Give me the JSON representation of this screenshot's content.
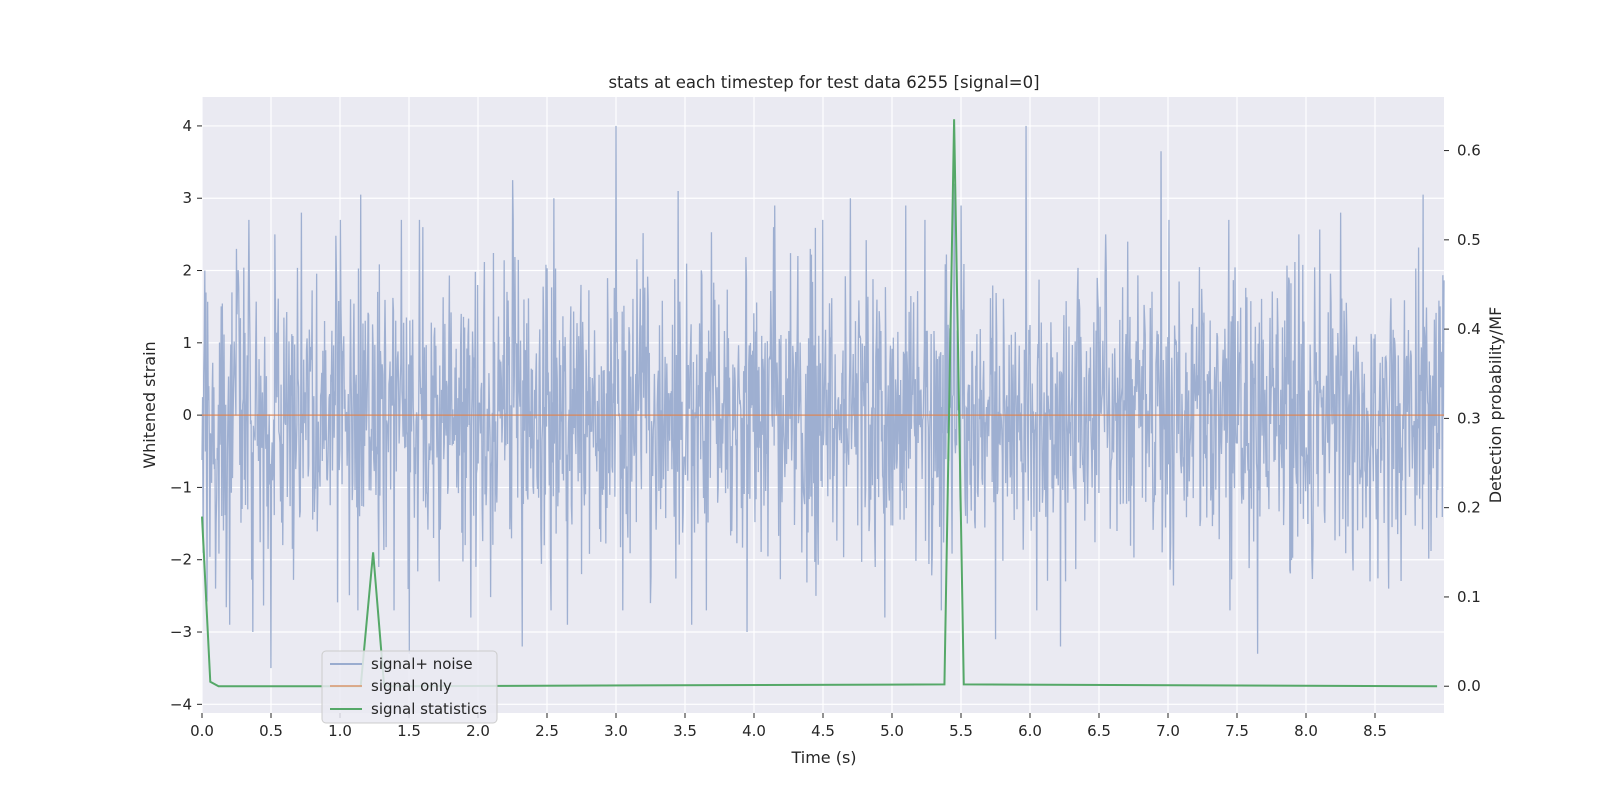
{
  "chart_data": {
    "type": "line",
    "title": "stats at each timestep for test data 6255 [signal=0]",
    "xlabel": "Time (s)",
    "ylabel": "Whitened strain",
    "y2label": "Detection probability/MF",
    "xlim": [
      0,
      9
    ],
    "ylim": [
      -4.12,
      4.4
    ],
    "y2lim": [
      -0.03,
      0.66
    ],
    "x_ticks": [
      0.0,
      0.5,
      1.0,
      1.5,
      2.0,
      2.5,
      3.0,
      3.5,
      4.0,
      4.5,
      5.0,
      5.5,
      6.0,
      6.5,
      7.0,
      7.5,
      8.0,
      8.5
    ],
    "x_tick_labels": [
      "0.0",
      "0.5",
      "1.0",
      "1.5",
      "2.0",
      "2.5",
      "3.0",
      "3.5",
      "4.0",
      "4.5",
      "5.0",
      "5.5",
      "6.0",
      "6.5",
      "7.0",
      "7.5",
      "8.0",
      "8.5"
    ],
    "y_ticks": [
      4,
      3,
      2,
      1,
      0,
      -1,
      -2,
      -3,
      -4
    ],
    "y_tick_labels": [
      "4",
      "3",
      "2",
      "1",
      "0",
      "−1",
      "−2",
      "−3",
      "−4"
    ],
    "y2_ticks": [
      0.6,
      0.5,
      0.4,
      0.3,
      0.2,
      0.1,
      0.0
    ],
    "y2_tick_labels": [
      "0.6",
      "0.5",
      "0.4",
      "0.3",
      "0.2",
      "0.1",
      "0.0"
    ],
    "grid": true,
    "legend_position": "lower-left",
    "series": [
      {
        "name": "signal+ noise",
        "axis": "left",
        "color": "#9aaccf",
        "kind": "noise",
        "samples": 2200,
        "sigma": 1.0,
        "seed": 6255,
        "peaks": [
          {
            "x": 0.02,
            "y": 2.0
          },
          {
            "x": 0.1,
            "y": -2.4
          },
          {
            "x": 0.2,
            "y": -2.9
          },
          {
            "x": 0.25,
            "y": 2.3
          },
          {
            "x": 0.34,
            "y": 2.7
          },
          {
            "x": 0.37,
            "y": -3.0
          },
          {
            "x": 0.5,
            "y": -3.5
          },
          {
            "x": 0.53,
            "y": 2.5
          },
          {
            "x": 0.72,
            "y": 2.8
          },
          {
            "x": 1.15,
            "y": 3.05
          },
          {
            "x": 1.28,
            "y": -2.1
          },
          {
            "x": 1.5,
            "y": -3.3
          },
          {
            "x": 1.6,
            "y": 2.6
          },
          {
            "x": 1.72,
            "y": -2.3
          },
          {
            "x": 1.95,
            "y": -2.8
          },
          {
            "x": 2.25,
            "y": 3.25
          },
          {
            "x": 2.32,
            "y": -3.2
          },
          {
            "x": 2.55,
            "y": 3.0
          },
          {
            "x": 2.65,
            "y": -2.9
          },
          {
            "x": 3.0,
            "y": 4.0
          },
          {
            "x": 3.05,
            "y": -2.7
          },
          {
            "x": 3.25,
            "y": -2.6
          },
          {
            "x": 3.45,
            "y": 3.1
          },
          {
            "x": 3.55,
            "y": -2.9
          },
          {
            "x": 3.95,
            "y": -3.0
          },
          {
            "x": 4.15,
            "y": 2.9
          },
          {
            "x": 4.45,
            "y": -2.5
          },
          {
            "x": 4.7,
            "y": 3.0
          },
          {
            "x": 4.95,
            "y": -2.8
          },
          {
            "x": 5.1,
            "y": 2.9
          },
          {
            "x": 5.45,
            "y": 3.2
          },
          {
            "x": 5.5,
            "y": 2.9
          },
          {
            "x": 5.75,
            "y": -3.1
          },
          {
            "x": 5.97,
            "y": 4.0
          },
          {
            "x": 6.05,
            "y": -2.7
          },
          {
            "x": 6.22,
            "y": -3.2
          },
          {
            "x": 6.55,
            "y": 2.5
          },
          {
            "x": 6.95,
            "y": 3.65
          },
          {
            "x": 7.45,
            "y": -2.7
          },
          {
            "x": 7.65,
            "y": -3.3
          },
          {
            "x": 7.95,
            "y": 2.5
          },
          {
            "x": 8.25,
            "y": 2.8
          },
          {
            "x": 8.6,
            "y": -2.4
          },
          {
            "x": 8.85,
            "y": 3.05
          }
        ]
      },
      {
        "name": "signal only",
        "axis": "left",
        "color": "#dd8452",
        "x": [
          0,
          9
        ],
        "y": [
          0,
          0
        ]
      },
      {
        "name": "signal statistics",
        "axis": "right",
        "color": "#55a868",
        "x": [
          0.0,
          0.06,
          0.12,
          1.15,
          1.24,
          1.32,
          5.38,
          5.45,
          5.52,
          8.95
        ],
        "y": [
          0.19,
          0.005,
          0.0,
          0.0,
          0.15,
          0.0,
          0.002,
          0.635,
          0.002,
          0.0
        ]
      }
    ]
  }
}
